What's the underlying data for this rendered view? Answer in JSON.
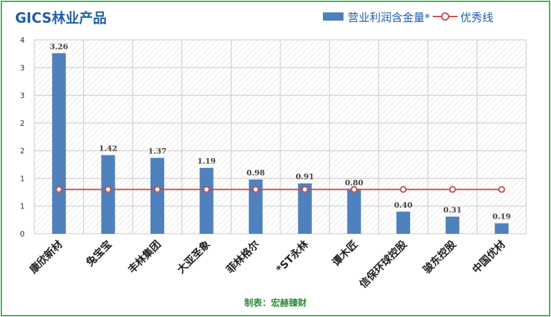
{
  "title": "GICS林业产品",
  "legend": {
    "bar_label": "营业利润含金量*",
    "line_label": "优秀线"
  },
  "footer": "制表：宏赫臻财",
  "colors": {
    "bar": "#4f81bd",
    "line": "#c0504d",
    "border": "#33b94a",
    "title": "#1f5fa8",
    "footer": "#2e8b3a"
  },
  "chart_data": {
    "type": "bar",
    "categories": [
      "康欣新材",
      "兔宝宝",
      "丰林集团",
      "大亚圣象",
      "菲林格尔",
      "*ST永林",
      "谭木匠",
      "信保环球控股",
      "骏东控股",
      "中国优材"
    ],
    "series": [
      {
        "name": "营业利润含金量*",
        "type": "bar",
        "values": [
          3.26,
          1.42,
          1.37,
          1.19,
          0.98,
          0.91,
          0.8,
          0.4,
          0.31,
          0.19
        ],
        "data_labels": [
          "3.26",
          "1.42",
          "1.37",
          "1.19",
          "0.98",
          "0.91",
          "0.80",
          "0.40",
          "0.31",
          "0.19"
        ]
      },
      {
        "name": "优秀线",
        "type": "line",
        "values": [
          0.8,
          0.8,
          0.8,
          0.8,
          0.8,
          0.8,
          0.8,
          0.8,
          0.8,
          0.8
        ]
      }
    ],
    "y_ticks": [
      "0",
      "1",
      "1",
      "2",
      "2",
      "3",
      "3",
      "4"
    ],
    "ylim": [
      0,
      3.5
    ],
    "grid": true,
    "legend_position": "top-right"
  }
}
